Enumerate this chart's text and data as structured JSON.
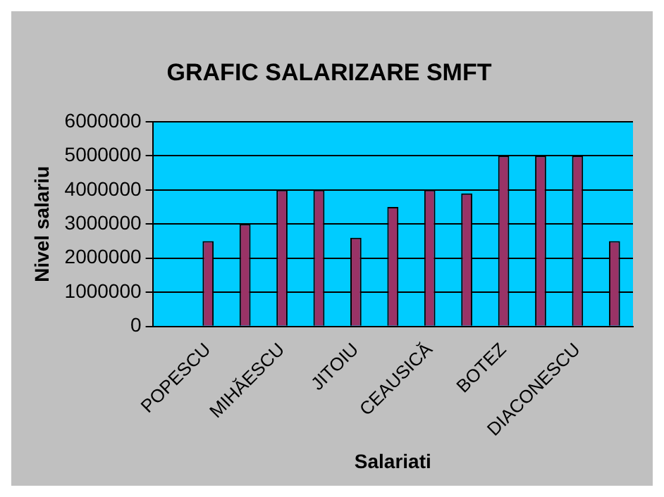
{
  "chart_data": {
    "type": "bar",
    "title": "GRAFIC SALARIZARE SMFT",
    "xlabel": "Salariati",
    "ylabel": "Nivel salariu",
    "categories": [
      null,
      "POPESCU",
      null,
      "MIHĂESCU",
      null,
      "JITOIU",
      null,
      "CEAUSICĂ",
      null,
      "BOTEZ",
      null,
      "DIACONESCU",
      null
    ],
    "values": [
      null,
      2500000,
      3000000,
      4000000,
      4000000,
      2600000,
      3500000,
      4000000,
      3900000,
      5000000,
      5000000,
      5000000,
      2500000
    ],
    "color": "#993366",
    "ylim": [
      0,
      6000000
    ],
    "yticks": [
      0,
      1000000,
      2000000,
      3000000,
      4000000,
      5000000,
      6000000
    ],
    "grid": "y",
    "legend": false
  }
}
